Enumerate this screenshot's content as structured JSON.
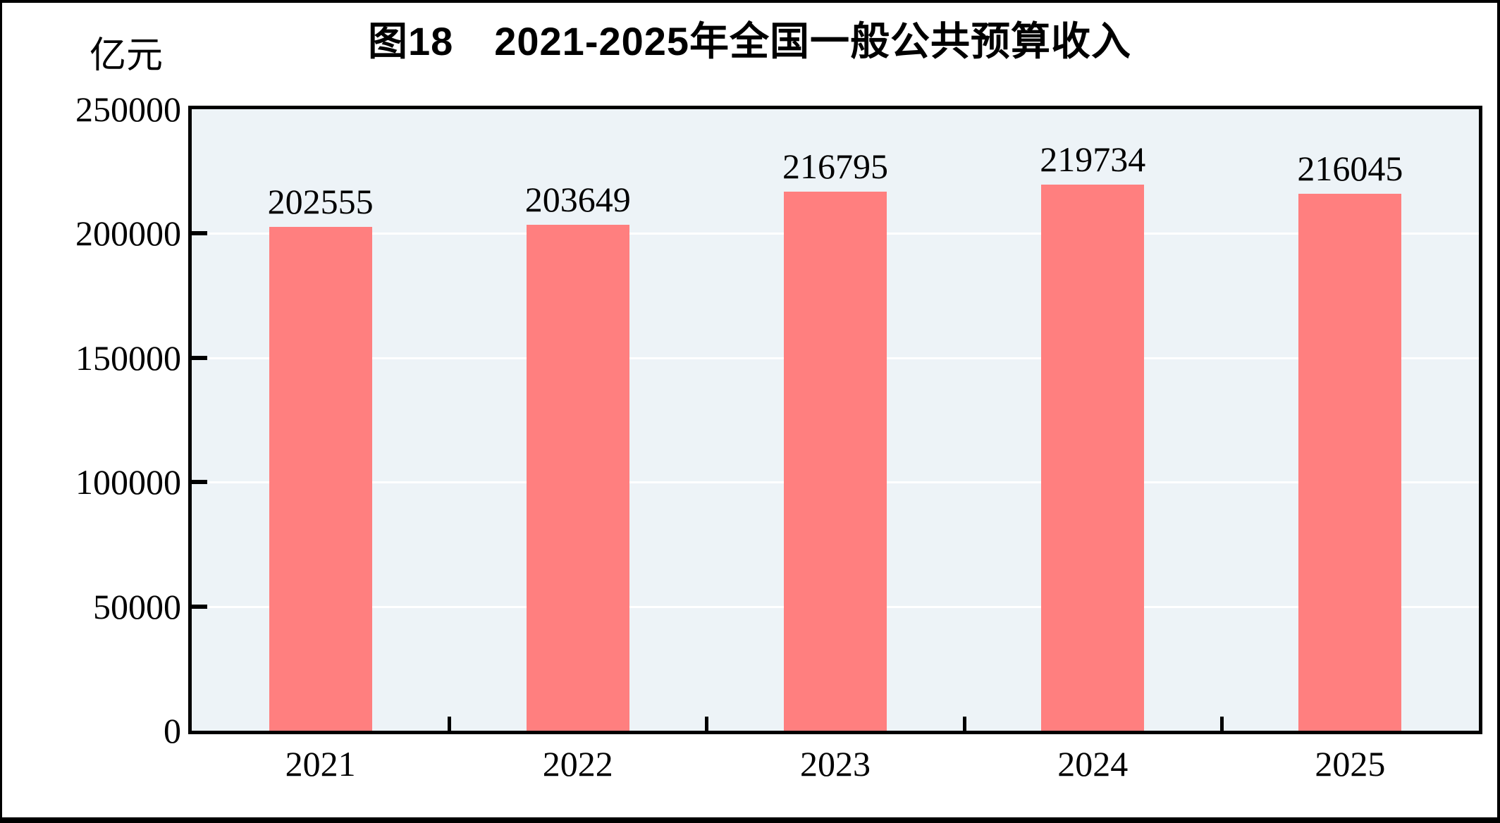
{
  "window": {
    "background": "#ffffff",
    "frame_color": "#000000"
  },
  "chart_data": {
    "type": "bar",
    "title_prefix": "图18",
    "title": "2021-2025年全国一般公共预算收入",
    "full_title": "图18  2021-2025年全国一般公共预算收入",
    "unit_label": "亿元",
    "categories": [
      "2021",
      "2022",
      "2023",
      "2024",
      "2025"
    ],
    "values": [
      202555,
      203649,
      216795,
      219734,
      216045
    ],
    "value_labels": [
      "202555",
      "203649",
      "216795",
      "219734",
      "216045"
    ],
    "xlabel": "",
    "ylabel": "亿元",
    "ylim": [
      0,
      250000
    ],
    "yticks": [
      {
        "value": 0,
        "label": "0"
      },
      {
        "value": 50000,
        "label": "50000"
      },
      {
        "value": 100000,
        "label": "100000"
      },
      {
        "value": 150000,
        "label": "150000"
      },
      {
        "value": 200000,
        "label": "200000"
      },
      {
        "value": 250000,
        "label": "250000"
      }
    ],
    "grid": true,
    "gridline_orientation": "horizontal",
    "legend": "none",
    "bar_width_fraction": 0.4,
    "colors": {
      "bar": "#ff7f7f",
      "plot_background": "#edf3f7",
      "gridline": "#ffffff",
      "axis": "#000000",
      "text": "#000000"
    }
  }
}
